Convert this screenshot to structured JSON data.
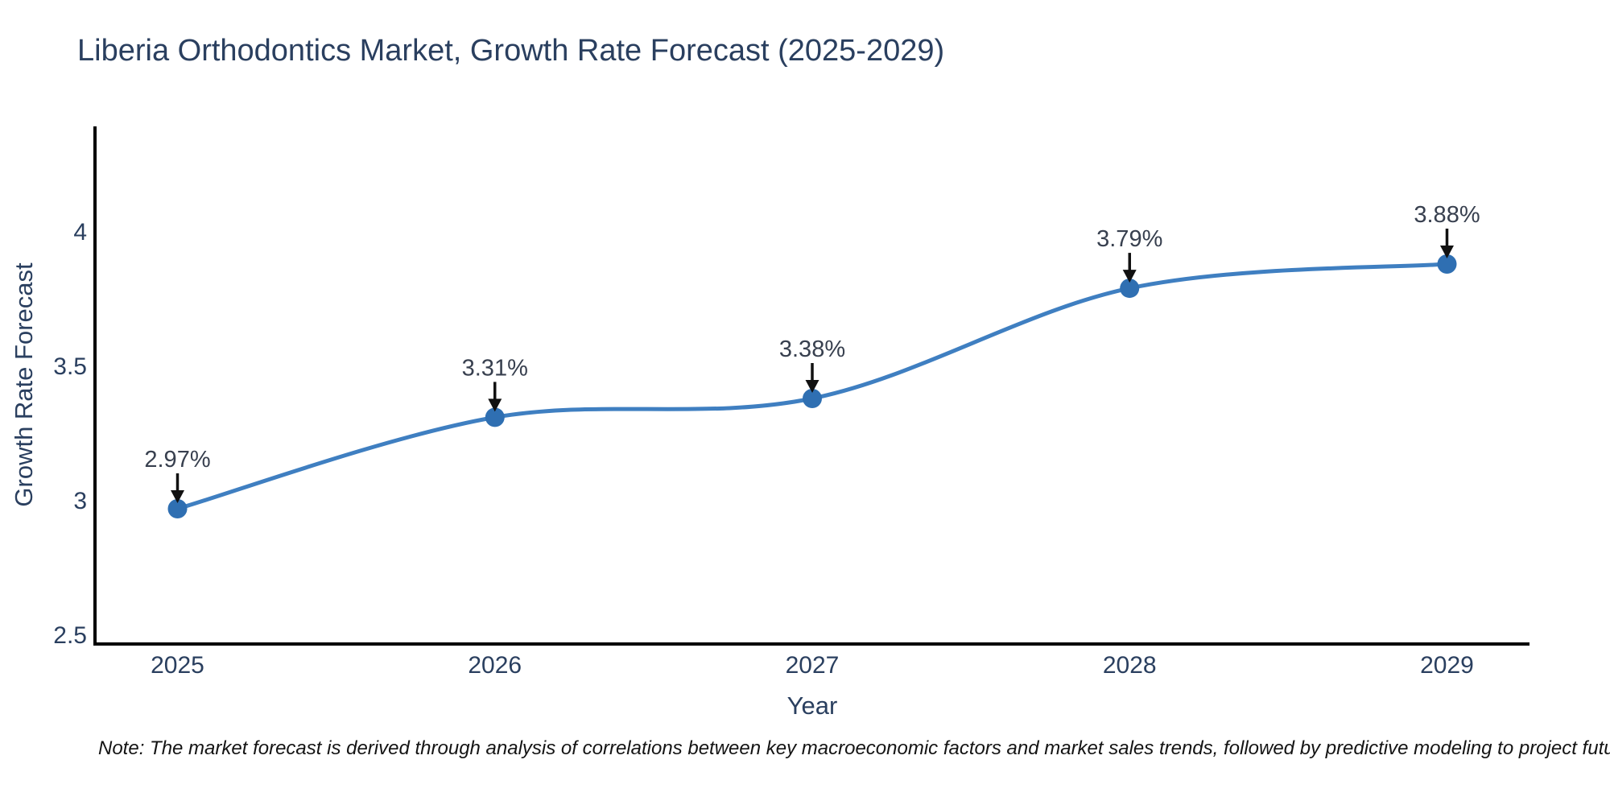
{
  "title": "Liberia Orthodontics Market, Growth Rate Forecast (2025-2029)",
  "note": "Note: The market forecast is derived through analysis of correlations between key macroeconomic factors and market sales trends, followed by predictive modeling to project future sales",
  "chart_data": {
    "type": "line",
    "title": "Liberia Orthodontics Market, Growth Rate Forecast (2025-2029)",
    "xlabel": "Year",
    "ylabel": "Growth Rate Forecast",
    "x": [
      2025,
      2026,
      2027,
      2028,
      2029
    ],
    "y": [
      2.97,
      3.31,
      3.38,
      3.79,
      3.88
    ],
    "point_labels": [
      "2.97%",
      "3.31%",
      "3.38%",
      "3.79%",
      "3.88%"
    ],
    "line_shape": "spline",
    "grid": false,
    "legend": "none",
    "xlim": [
      2024.74,
      2029.26
    ],
    "ylim": [
      2.467,
      4.392
    ],
    "x_ticks": [
      {
        "value": 2025,
        "label": "2025"
      },
      {
        "value": 2026,
        "label": "2026"
      },
      {
        "value": 2027,
        "label": "2027"
      },
      {
        "value": 2028,
        "label": "2028"
      },
      {
        "value": 2029,
        "label": "2029"
      }
    ],
    "y_ticks": [
      {
        "value": 2.5,
        "label": "2.5"
      },
      {
        "value": 3,
        "label": "3"
      },
      {
        "value": 3.5,
        "label": "3.5"
      },
      {
        "value": 4,
        "label": "4"
      }
    ],
    "colors": {
      "line": "#3f7fc1",
      "marker": "#2f6fb2",
      "axis": "#000000",
      "text": "#2a3f5f",
      "annotation_text": "#38404f",
      "arrow": "#111111"
    }
  }
}
